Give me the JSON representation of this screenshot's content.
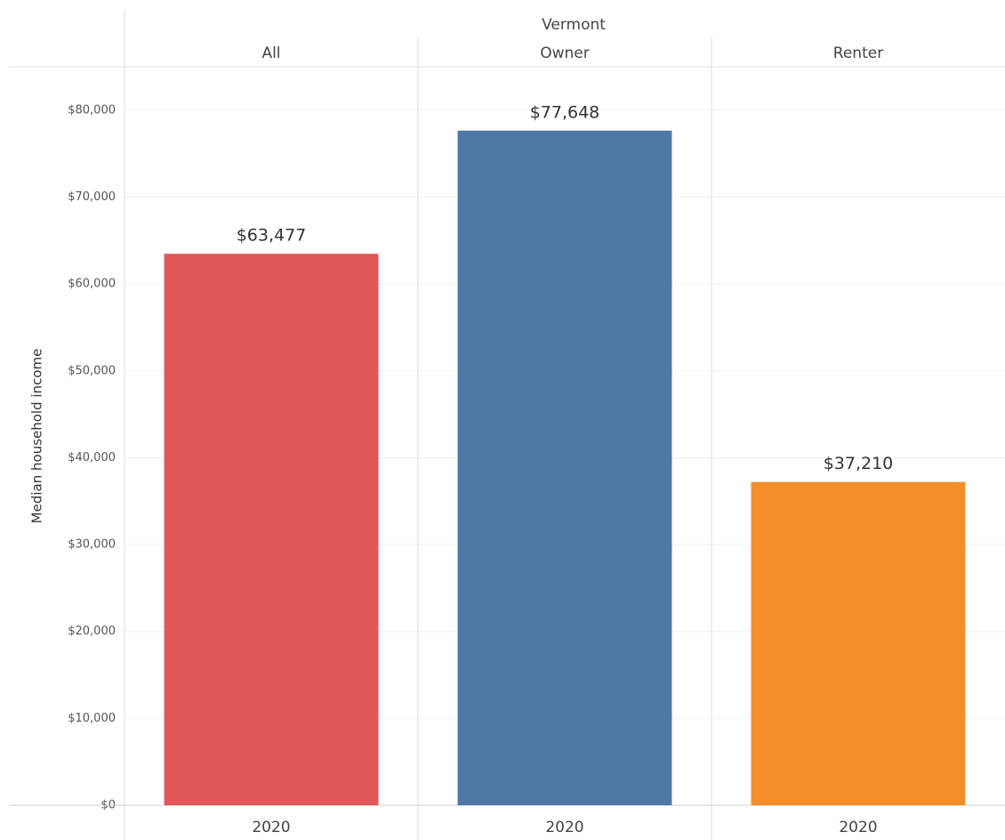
{
  "chart_data": {
    "type": "bar",
    "title": "Vermont",
    "y_label": "Median household income",
    "panels": [
      {
        "name": "All",
        "categories": [
          "2020"
        ],
        "values": [
          63477
        ],
        "value_labels": [
          "$63,477"
        ],
        "color": "#e15759"
      },
      {
        "name": "Owner",
        "categories": [
          "2020"
        ],
        "values": [
          77648
        ],
        "value_labels": [
          "$77,648"
        ],
        "color": "#4e79a7"
      },
      {
        "name": "Renter",
        "categories": [
          "2020"
        ],
        "values": [
          37210
        ],
        "value_labels": [
          "$37,210"
        ],
        "color": "#f28e2b"
      }
    ],
    "ylim": [
      0,
      85000
    ],
    "yticks": [
      {
        "value": 0,
        "label": "$0"
      },
      {
        "value": 10000,
        "label": "$10,000"
      },
      {
        "value": 20000,
        "label": "$20,000"
      },
      {
        "value": 30000,
        "label": "$30,000"
      },
      {
        "value": 40000,
        "label": "$40,000"
      },
      {
        "value": 50000,
        "label": "$50,000"
      },
      {
        "value": 60000,
        "label": "$60,000"
      },
      {
        "value": 70000,
        "label": "$70,000"
      },
      {
        "value": 80000,
        "label": "$80,000"
      }
    ],
    "grid": true
  }
}
